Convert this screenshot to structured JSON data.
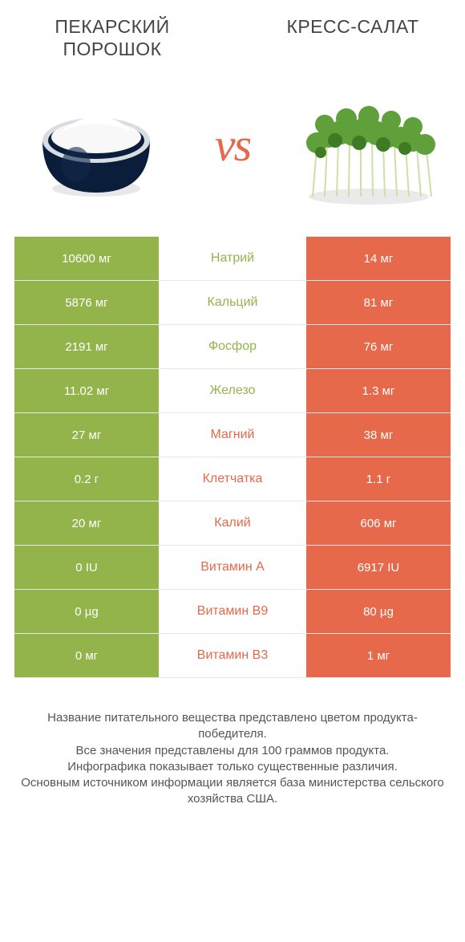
{
  "header": {
    "left_title": "ПЕКАРСКИЙ ПОРОШОК",
    "right_title": "КРЕСС-САЛАТ"
  },
  "vs_label": "vs",
  "colors": {
    "green": "#93b44a",
    "orange": "#e5694a",
    "bowl_dark": "#0a1d3a",
    "bowl_rim": "#d8dde3",
    "powder": "#f8f8f8",
    "leaf_green": "#5fa03a",
    "leaf_dark": "#3f7a24",
    "stem": "#cde0a8"
  },
  "rows": [
    {
      "left": "10600 мг",
      "mid": "Натрий",
      "right": "14 мг",
      "winner": "left"
    },
    {
      "left": "5876 мг",
      "mid": "Кальций",
      "right": "81 мг",
      "winner": "left"
    },
    {
      "left": "2191 мг",
      "mid": "Фосфор",
      "right": "76 мг",
      "winner": "left"
    },
    {
      "left": "11.02 мг",
      "mid": "Железо",
      "right": "1.3 мг",
      "winner": "left"
    },
    {
      "left": "27 мг",
      "mid": "Магний",
      "right": "38 мг",
      "winner": "right"
    },
    {
      "left": "0.2 г",
      "mid": "Клетчатка",
      "right": "1.1 г",
      "winner": "right"
    },
    {
      "left": "20 мг",
      "mid": "Калий",
      "right": "606 мг",
      "winner": "right"
    },
    {
      "left": "0 IU",
      "mid": "Витамин A",
      "right": "6917 IU",
      "winner": "right"
    },
    {
      "left": "0 µg",
      "mid": "Витамин B9",
      "right": "80 µg",
      "winner": "right"
    },
    {
      "left": "0 мг",
      "mid": "Витамин B3",
      "right": "1 мг",
      "winner": "right"
    }
  ],
  "footer_lines": [
    "Название питательного вещества представлено цветом продукта-победителя.",
    "Все значения представлены для 100 граммов продукта.",
    "Инфографика показывает только существенные различия.",
    "Основным источником информации является база министерства сельского хозяйства США."
  ]
}
